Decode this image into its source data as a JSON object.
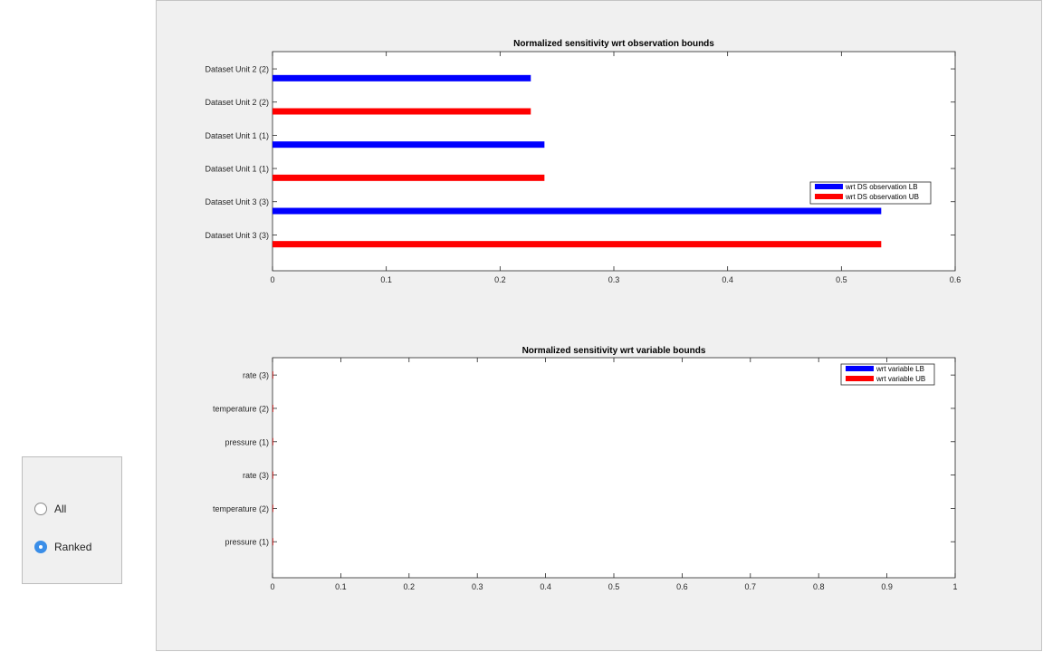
{
  "selector": {
    "options": [
      {
        "label": "All",
        "checked": false
      },
      {
        "label": "Ranked",
        "checked": true
      }
    ],
    "accent_color": "#3b8ee8"
  },
  "chart_data": [
    {
      "type": "bar",
      "orientation": "horizontal",
      "title": "Normalized sensitivity wrt observation bounds",
      "categories": [
        "Dataset Unit 3 (3)",
        "Dataset Unit 3 (3)",
        "Dataset Unit 1 (1)",
        "Dataset Unit 1 (1)",
        "Dataset Unit 2 (2)",
        "Dataset Unit 2 (2)"
      ],
      "series": [
        {
          "name": "wrt DS observation LB",
          "color": "#0000ff",
          "values": [
            0,
            0.535,
            0,
            0.239,
            0,
            0.227
          ]
        },
        {
          "name": "wrt DS observation UB",
          "color": "#ff0000",
          "values": [
            0.535,
            0,
            0.239,
            0,
            0.227,
            0
          ]
        }
      ],
      "xlim": [
        0,
        0.6
      ],
      "xticks": [
        "0",
        "0.1",
        "0.2",
        "0.3",
        "0.4",
        "0.5",
        "0.6"
      ],
      "xtick_values": [
        0,
        0.1,
        0.2,
        0.3,
        0.4,
        0.5,
        0.6
      ],
      "legend_position": "right",
      "xlabel": "",
      "ylabel": "",
      "grid": false
    },
    {
      "type": "bar",
      "orientation": "horizontal",
      "title": "Normalized sensitivity wrt variable bounds",
      "categories": [
        "pressure (1)",
        "temperature (2)",
        "rate (3)",
        "pressure (1)",
        "temperature (2)",
        "rate (3)"
      ],
      "series": [
        {
          "name": "wrt variable LB",
          "color": "#0000ff",
          "values": [
            0,
            0,
            0,
            0,
            0,
            0
          ]
        },
        {
          "name": "wrt variable UB",
          "color": "#ff0000",
          "values": [
            0,
            0,
            0,
            0,
            0,
            0
          ]
        }
      ],
      "xlim": [
        0,
        1
      ],
      "xticks": [
        "0",
        "0.1",
        "0.2",
        "0.3",
        "0.4",
        "0.5",
        "0.6",
        "0.7",
        "0.8",
        "0.9",
        "1"
      ],
      "xtick_values": [
        0,
        0.1,
        0.2,
        0.3,
        0.4,
        0.5,
        0.6,
        0.7,
        0.8,
        0.9,
        1
      ],
      "legend_position": "top-right",
      "xlabel": "",
      "ylabel": "",
      "grid": false
    }
  ]
}
